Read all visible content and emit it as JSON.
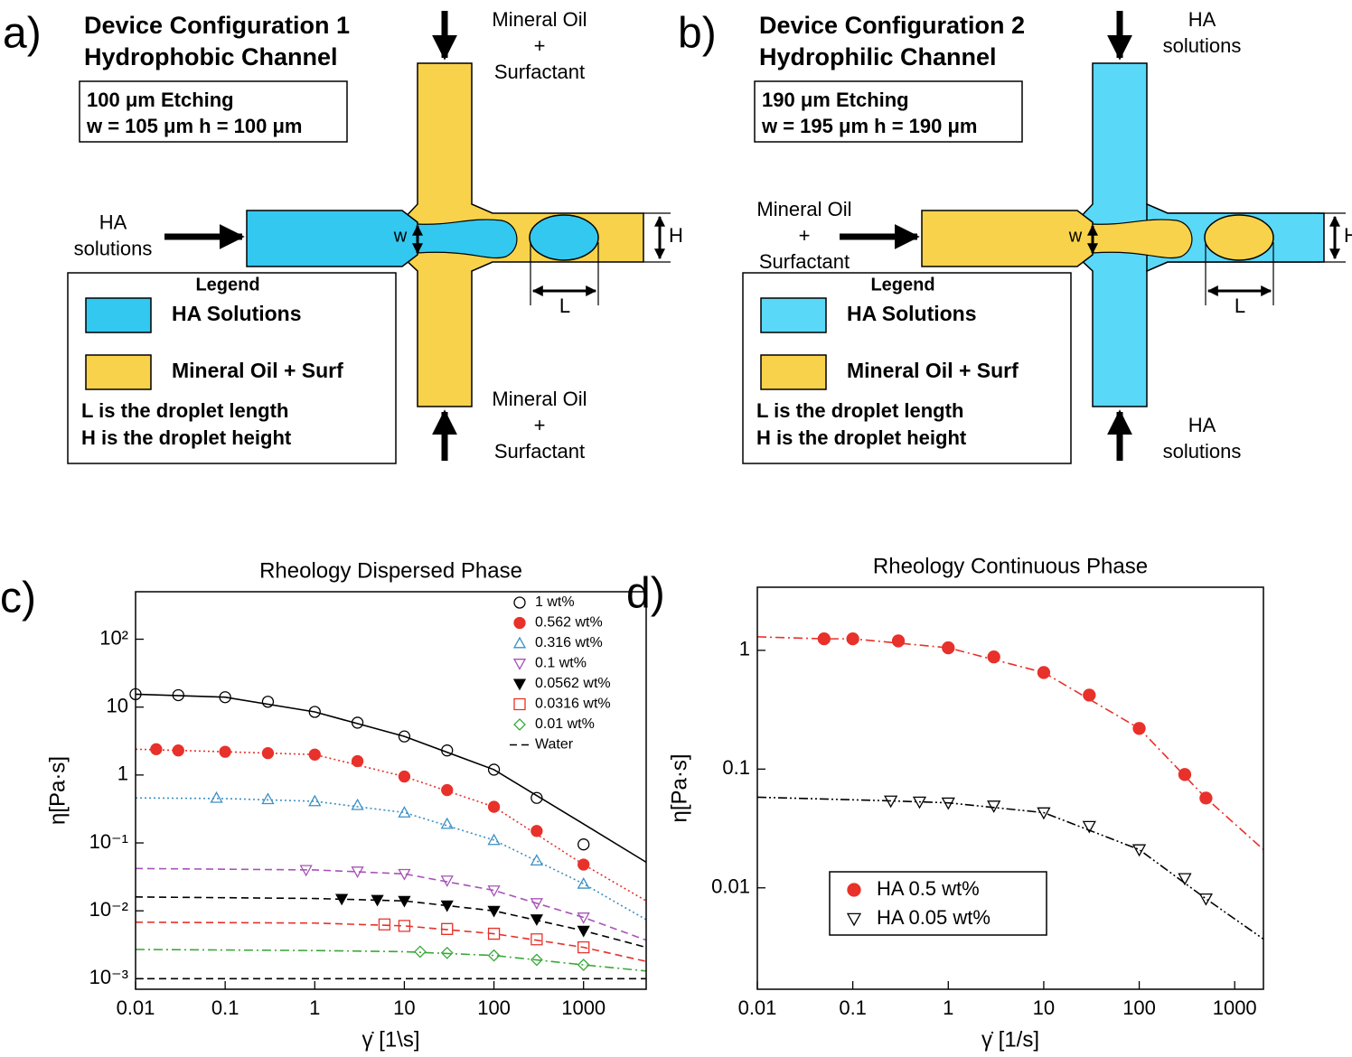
{
  "panels": [
    {
      "label": "a)",
      "title": [
        "Device Configuration 1",
        "Hydrophobic Channel"
      ],
      "spec": [
        "100 μm Etching",
        "w = 105 μm h = 100 μm"
      ],
      "top_inlet": [
        "Mineral Oil",
        "+",
        "Surfactant"
      ],
      "bottom_inlet": [
        "Mineral Oil",
        "+",
        "Surfactant"
      ],
      "left_inlet": [
        "HA",
        "solutions"
      ],
      "dim_w": "w",
      "dim_h": "H",
      "dim_l": "L",
      "legend": {
        "title": "Legend",
        "items": [
          {
            "label": "HA Solutions",
            "color": "#33c8f0"
          },
          {
            "label": "Mineral Oil + Surf",
            "color": "#f8d24a"
          }
        ],
        "notes": [
          "L is the droplet length",
          "H is the droplet height"
        ]
      }
    },
    {
      "label": "b)",
      "title": [
        "Device Configuration 2",
        "Hydrophilic Channel"
      ],
      "spec": [
        "190 μm Etching",
        "w = 195 μm h = 190 μm"
      ],
      "top_inlet": [
        "HA",
        "solutions"
      ],
      "bottom_inlet": [
        "HA",
        "solutions"
      ],
      "left_inlet": [
        "Mineral Oil",
        "+",
        "Surfactant"
      ],
      "dim_w": "w",
      "dim_h": "H",
      "dim_l": "L",
      "legend": {
        "title": "Legend",
        "items": [
          {
            "label": "HA Solutions",
            "color": "#5ad8f8"
          },
          {
            "label": "Mineral Oil + Surf",
            "color": "#f8d24a"
          }
        ],
        "notes": [
          "L is the droplet length",
          "H is the droplet height"
        ]
      }
    }
  ],
  "chart_data": [
    {
      "type": "scatter",
      "panel_label": "c)",
      "title": "Rheology Dispersed Phase",
      "xlabel": "γ̇ [1\\s]",
      "ylabel": "η[Pa·s]",
      "xscale": "log",
      "yscale": "log",
      "xlim": [
        0.01,
        5000
      ],
      "ylim": [
        0.0007,
        500
      ],
      "xticks": [
        0.01,
        0.1,
        1,
        10,
        100,
        1000
      ],
      "yticks": [
        {
          "value": 0.001,
          "label": "10⁻³"
        },
        {
          "value": 0.01,
          "label": "10⁻²"
        },
        {
          "value": 0.1,
          "label": "10⁻¹"
        },
        1,
        10,
        {
          "value": 100,
          "label": "10²"
        }
      ],
      "legend": "upper right",
      "series": [
        {
          "color": "#000000",
          "line": "solid",
          "x": [
            0.01,
            0.1,
            1,
            10,
            100,
            1000,
            5000
          ],
          "values": [
            15.5,
            14,
            8.5,
            3.7,
            1.2,
            0.19,
            0.052
          ]
        },
        {
          "color": "#e8312a",
          "line": "dotted",
          "x": [
            0.01,
            0.1,
            1,
            10,
            100,
            1000,
            5000
          ],
          "values": [
            2.4,
            2.2,
            2.0,
            0.95,
            0.34,
            0.048,
            0.014
          ]
        },
        {
          "color": "#3a8fc4",
          "line": "dotted",
          "x": [
            0.01,
            0.1,
            1,
            10,
            100,
            1000,
            5000
          ],
          "values": [
            0.46,
            0.45,
            0.41,
            0.28,
            0.11,
            0.025,
            0.0074
          ]
        },
        {
          "color": "#a653b8",
          "line": "dashed",
          "x": [
            0.01,
            1,
            10,
            100,
            1000,
            5000
          ],
          "values": [
            0.042,
            0.04,
            0.035,
            0.02,
            0.008,
            0.0037
          ]
        },
        {
          "color": "#000000",
          "line": "dashed",
          "x": [
            0.01,
            1,
            10,
            100,
            1000,
            5000
          ],
          "values": [
            0.016,
            0.0152,
            0.014,
            0.01,
            0.0051,
            0.0029
          ]
        },
        {
          "color": "#e8312a",
          "line": "dashed",
          "x": [
            0.01,
            1,
            10,
            100,
            1000,
            5000
          ],
          "values": [
            0.0068,
            0.0066,
            0.006,
            0.0046,
            0.0029,
            0.0018
          ]
        },
        {
          "color": "#3aa83a",
          "line": "dashdot",
          "x": [
            0.01,
            1,
            10,
            100,
            1000,
            5000
          ],
          "values": [
            0.0027,
            0.0026,
            0.0025,
            0.0022,
            0.0016,
            0.0013
          ]
        },
        {
          "name": "1 wt%",
          "color": "#000000",
          "marker": "circle",
          "x": [
            0.01,
            0.03,
            0.1,
            0.3,
            1,
            3,
            10,
            30,
            100,
            300,
            1000
          ],
          "values": [
            15.5,
            15,
            14,
            12,
            8.5,
            5.9,
            3.7,
            2.3,
            1.2,
            0.46,
            0.095
          ]
        },
        {
          "name": "0.562 wt%",
          "color": "#e8312a",
          "marker": "circle-filled",
          "x": [
            0.017,
            0.03,
            0.1,
            0.3,
            1,
            3,
            10,
            30,
            100,
            300,
            1000
          ],
          "values": [
            2.4,
            2.3,
            2.2,
            2.1,
            2.0,
            1.6,
            0.95,
            0.6,
            0.34,
            0.15,
            0.048
          ]
        },
        {
          "name": "0.316 wt%",
          "color": "#3a8fc4",
          "marker": "triangle-up",
          "x": [
            0.08,
            0.3,
            1,
            3,
            10,
            30,
            100,
            300,
            1000
          ],
          "values": [
            0.46,
            0.44,
            0.41,
            0.36,
            0.28,
            0.19,
            0.11,
            0.055,
            0.025
          ]
        },
        {
          "name": "0.1 wt%",
          "color": "#a653b8",
          "marker": "triangle-down",
          "x": [
            0.8,
            3,
            10,
            30,
            100,
            300,
            1000
          ],
          "values": [
            0.04,
            0.038,
            0.035,
            0.028,
            0.02,
            0.013,
            0.008
          ]
        },
        {
          "name": "0.0562 wt%",
          "color": "#000000",
          "marker": "triangle-down-filled",
          "x": [
            2,
            5,
            10,
            30,
            100,
            300,
            1000
          ],
          "values": [
            0.015,
            0.0145,
            0.014,
            0.012,
            0.01,
            0.0075,
            0.0051
          ]
        },
        {
          "name": "0.0316 wt%",
          "color": "#e8312a",
          "marker": "square",
          "x": [
            6,
            10,
            30,
            100,
            300,
            1000
          ],
          "values": [
            0.0063,
            0.006,
            0.0054,
            0.0046,
            0.0038,
            0.0029
          ]
        },
        {
          "name": "0.01 wt%",
          "color": "#3aa83a",
          "marker": "diamond",
          "x": [
            15,
            30,
            100,
            300,
            1000
          ],
          "values": [
            0.0025,
            0.0024,
            0.0022,
            0.0019,
            0.0016
          ]
        },
        {
          "name": "Water",
          "color": "#000000",
          "line": "dashed",
          "x": [
            0.01,
            5000
          ],
          "values": [
            0.001,
            0.001
          ]
        }
      ]
    },
    {
      "type": "scatter",
      "panel_label": "d)",
      "title": "Rheology Continuous Phase",
      "xlabel": "γ̇ [1/s]",
      "ylabel": "η[Pa·s]",
      "xscale": "log",
      "yscale": "log",
      "xlim": [
        0.01,
        2000
      ],
      "ylim": [
        0.0014,
        3.4
      ],
      "xticks": [
        0.01,
        0.1,
        1,
        10,
        100,
        1000
      ],
      "yticks": [
        0.01,
        0.1,
        1
      ],
      "legend": "lower left",
      "series": [
        {
          "color": "#e8312a",
          "line": "dashdot",
          "x": [
            0.01,
            0.05,
            0.1,
            1,
            10,
            100,
            500,
            2000
          ],
          "values": [
            1.3,
            1.25,
            1.25,
            1.05,
            0.65,
            0.22,
            0.057,
            0.021
          ]
        },
        {
          "color": "#000000",
          "line": "dashdotdot",
          "x": [
            0.01,
            0.25,
            1,
            10,
            100,
            500,
            2000
          ],
          "values": [
            0.058,
            0.054,
            0.052,
            0.043,
            0.021,
            0.0081,
            0.0037
          ]
        },
        {
          "name": "HA 0.5 wt%",
          "color": "#e8312a",
          "marker": "circle-filled",
          "x": [
            0.05,
            0.1,
            0.3,
            1,
            3,
            10,
            30,
            100,
            300,
            500
          ],
          "values": [
            1.25,
            1.25,
            1.2,
            1.05,
            0.88,
            0.65,
            0.42,
            0.22,
            0.09,
            0.057
          ]
        },
        {
          "name": "HA 0.05 wt%",
          "color": "#000000",
          "marker": "triangle-down",
          "x": [
            0.25,
            0.5,
            1,
            3,
            10,
            30,
            100,
            300,
            500
          ],
          "values": [
            0.054,
            0.053,
            0.052,
            0.049,
            0.043,
            0.033,
            0.021,
            0.012,
            0.0081
          ]
        }
      ]
    }
  ]
}
